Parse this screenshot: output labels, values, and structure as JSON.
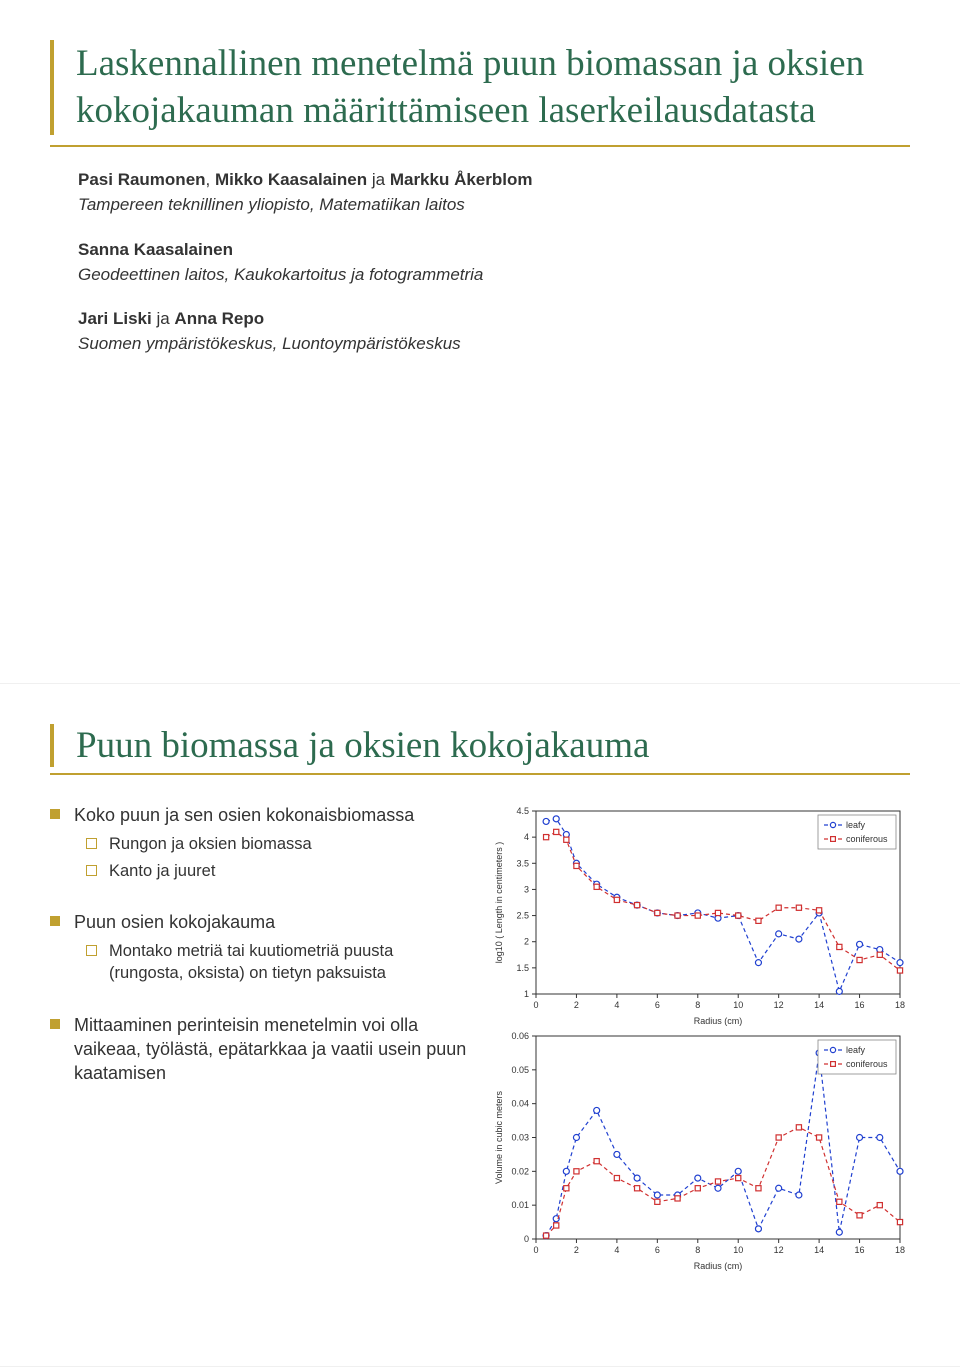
{
  "slide1": {
    "title": "Laskennallinen menetelmä puun biomassan ja oksien kokojakauman määrittämiseen laserkeilausdatasta",
    "authors_line1_html": "Pasi Raumonen, Mikko Kaasalainen ja Markku Åkerblom",
    "authors_line1_bold": [
      "Pasi Raumonen",
      "Mikko Kaasalainen",
      "Markku Åkerblom"
    ],
    "inst1": "Tampereen teknillinen yliopisto, Matematiikan laitos",
    "authors_line2_bold": "Sanna Kaasalainen",
    "inst2": "Geodeettinen laitos, Kaukokartoitus ja fotogrammetria",
    "authors_line3": "Jari Liski ja Anna Repo",
    "authors_line3_bold": [
      "Jari Liski",
      "Anna Repo"
    ],
    "inst3": "Suomen ympäristökeskus, Luontoympäristökeskus"
  },
  "slide2": {
    "title": "Puun biomassa ja oksien kokojakauma",
    "bullets": [
      {
        "text": "Koko puun ja sen osien kokonaisbiomassa",
        "sub": [
          "Rungon ja oksien biomassa",
          "Kanto ja juuret"
        ]
      },
      {
        "text": "Puun osien kokojakauma",
        "sub": [
          "Montako metriä tai kuutiometriä puusta (rungosta, oksista) on tietyn paksuista"
        ]
      },
      {
        "text": "Mittaaminen perinteisin menetelmin voi olla vaikeaa, työlästä, epätarkkaa ja vaatii usein puun kaatamisen",
        "sub": []
      }
    ]
  },
  "chart_top": {
    "type": "line",
    "xlabel": "Radius (cm)",
    "ylabel": "log10 ( Length in centimeters )",
    "xlim": [
      0,
      18
    ],
    "xtick_step": 2,
    "ylim": [
      1,
      4.5
    ],
    "ytick_step": 0.5,
    "background_color": "#ffffff",
    "box_color": "#333333",
    "legend": {
      "items": [
        "leafy",
        "coniferous"
      ],
      "position": "top-right"
    },
    "series": [
      {
        "name": "leafy",
        "color": "#2040d0",
        "marker": "circle",
        "dash": "4,3",
        "x": [
          0.5,
          1,
          1.5,
          2,
          3,
          4,
          5,
          6,
          7,
          8,
          9,
          10,
          11,
          12,
          13,
          14,
          15,
          16,
          17,
          18
        ],
        "y": [
          4.3,
          4.35,
          4.05,
          3.5,
          3.1,
          2.85,
          2.7,
          2.55,
          2.5,
          2.55,
          2.45,
          2.5,
          1.6,
          2.15,
          2.05,
          2.55,
          1.05,
          1.95,
          1.85,
          1.6
        ]
      },
      {
        "name": "coniferous",
        "color": "#d03030",
        "marker": "square",
        "dash": "4,3",
        "x": [
          0.5,
          1,
          1.5,
          2,
          3,
          4,
          5,
          6,
          7,
          8,
          9,
          10,
          11,
          12,
          13,
          14,
          15,
          16,
          17,
          18
        ],
        "y": [
          4.0,
          4.1,
          3.95,
          3.45,
          3.05,
          2.8,
          2.7,
          2.55,
          2.5,
          2.5,
          2.55,
          2.5,
          2.4,
          2.65,
          2.65,
          2.6,
          1.9,
          1.65,
          1.75,
          1.45
        ]
      }
    ]
  },
  "chart_bottom": {
    "type": "line",
    "xlabel": "Radius (cm)",
    "ylabel": "Volume in cubic meters",
    "xlim": [
      0,
      18
    ],
    "xtick_step": 2,
    "ylim": [
      0,
      0.06
    ],
    "ytick_step": 0.01,
    "background_color": "#ffffff",
    "box_color": "#333333",
    "legend": {
      "items": [
        "leafy",
        "coniferous"
      ],
      "position": "top-right"
    },
    "series": [
      {
        "name": "leafy",
        "color": "#2040d0",
        "marker": "circle",
        "dash": "4,3",
        "x": [
          0.5,
          1,
          1.5,
          2,
          3,
          4,
          5,
          6,
          7,
          8,
          9,
          10,
          11,
          12,
          13,
          14,
          15,
          16,
          17,
          18
        ],
        "y": [
          0.001,
          0.006,
          0.02,
          0.03,
          0.038,
          0.025,
          0.018,
          0.013,
          0.013,
          0.018,
          0.015,
          0.02,
          0.003,
          0.015,
          0.013,
          0.055,
          0.002,
          0.03,
          0.03,
          0.02
        ]
      },
      {
        "name": "coniferous",
        "color": "#d03030",
        "marker": "square",
        "dash": "4,3",
        "x": [
          0.5,
          1,
          1.5,
          2,
          3,
          4,
          5,
          6,
          7,
          8,
          9,
          10,
          11,
          12,
          13,
          14,
          15,
          16,
          17,
          18
        ],
        "y": [
          0.001,
          0.004,
          0.015,
          0.02,
          0.023,
          0.018,
          0.015,
          0.011,
          0.012,
          0.015,
          0.017,
          0.018,
          0.015,
          0.03,
          0.033,
          0.03,
          0.011,
          0.007,
          0.01,
          0.005
        ]
      }
    ]
  },
  "colors": {
    "title": "#2d6b4f",
    "accent": "#c0a030",
    "leafy": "#2040d0",
    "coniferous": "#d03030"
  }
}
